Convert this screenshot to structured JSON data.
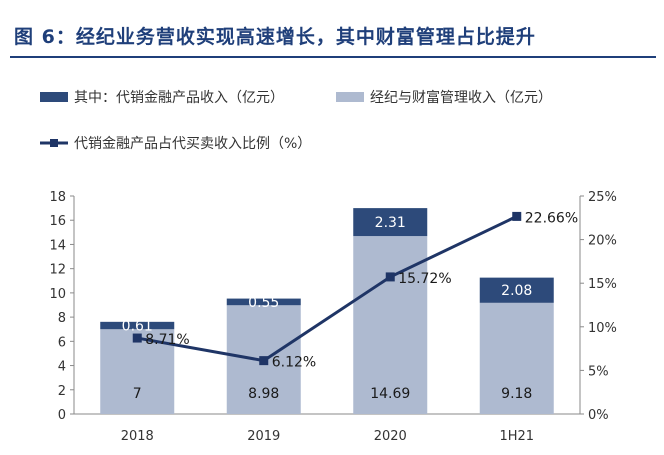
{
  "title": "图 6：经纪业务营收实现高速增长，其中财富管理占比提升",
  "chart_data": {
    "type": "bar",
    "categories": [
      "2018",
      "2019",
      "2020",
      "1H21"
    ],
    "ylim": [
      0,
      18
    ],
    "yticks": [
      0,
      2,
      4,
      6,
      8,
      10,
      12,
      14,
      16,
      18
    ],
    "y2lim": [
      0,
      25
    ],
    "y2ticks": [
      "0%",
      "5%",
      "10%",
      "15%",
      "20%",
      "25%"
    ],
    "legend_placement": "top-left",
    "series": [
      {
        "name": "其中：代销金融产品收入（亿元）",
        "kind": "bar-stack-top",
        "values": [
          0.61,
          0.55,
          2.31,
          2.08
        ],
        "labels": [
          "0.61",
          "0.55",
          "2.31",
          "2.08"
        ],
        "color": "#2d4a7a"
      },
      {
        "name": "经纪与财富管理收入（亿元）",
        "kind": "bar-stack-bottom",
        "values": [
          7,
          8.98,
          14.69,
          9.18
        ],
        "labels": [
          "7",
          "8.98",
          "14.69",
          "9.18"
        ],
        "color": "#aebad0"
      },
      {
        "name": "代销金融产品占代买卖收入比例（%）",
        "kind": "line-secondary",
        "values": [
          8.71,
          6.12,
          15.72,
          22.66
        ],
        "labels": [
          "8.71%",
          "6.12%",
          "15.72%",
          "22.66%"
        ],
        "color": "#1f3566"
      }
    ]
  }
}
